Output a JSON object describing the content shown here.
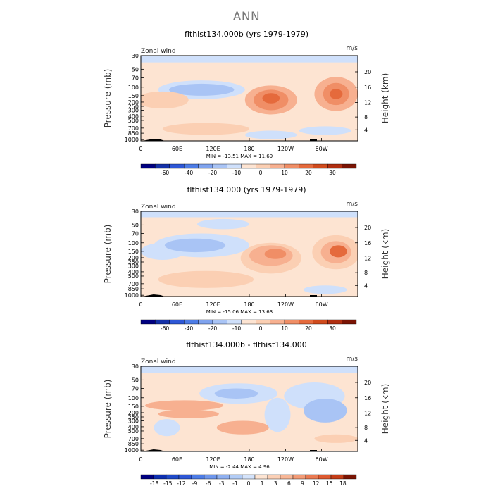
{
  "page": {
    "title": "ANN"
  },
  "colors": {
    "bg": "#fde4d2",
    "neg": [
      "#000080",
      "#0d2fb0",
      "#2e57d6",
      "#4d7ce6",
      "#7fa3ee",
      "#a9c4f5",
      "#cfe0fb"
    ],
    "pos": [
      "#fde4d2",
      "#fbcfb3",
      "#f7b090",
      "#f08e66",
      "#e56a3c",
      "#d04b1d",
      "#b02e10",
      "#7a1404"
    ]
  },
  "chart_data": [
    {
      "type": "contour",
      "title": "flthist134.000b (yrs 1979-1979)",
      "left_label": "Zonal wind",
      "right_label": "m/s",
      "ylabel": "Pressure (mb)",
      "ylabel_right": "Height (km)",
      "pressure_ticks": [
        "30",
        "50",
        "70",
        "100",
        "150",
        "200",
        "250",
        "300",
        "400",
        "500",
        "700",
        "850",
        "1000"
      ],
      "height_ticks": [
        "20",
        "16",
        "12",
        "8",
        "4"
      ],
      "x_ticks": [
        "0",
        "60E",
        "120E",
        "180",
        "120W",
        "60W"
      ],
      "stats": "MIN = -13.51   MAX =  11.69",
      "colorbar_labels": [
        "-60",
        "-40",
        "-20",
        "-10",
        "0",
        "10",
        "20",
        "30"
      ],
      "colorbar_colors": [
        "#000080",
        "#1431a8",
        "#2e57d6",
        "#4d7ce6",
        "#7fa3ee",
        "#a9c4f5",
        "#cfe0fb",
        "#fde4d2",
        "#fbcfb3",
        "#f7b090",
        "#f08e66",
        "#e56a3c",
        "#d04b1d",
        "#b02e10",
        "#7a1404"
      ]
    },
    {
      "type": "contour",
      "title": "flthist134.000 (yrs 1979-1979)",
      "left_label": "Zonal wind",
      "right_label": "m/s",
      "ylabel": "Pressure (mb)",
      "ylabel_right": "Height (km)",
      "pressure_ticks": [
        "30",
        "50",
        "70",
        "100",
        "150",
        "200",
        "250",
        "300",
        "400",
        "500",
        "700",
        "850",
        "1000"
      ],
      "height_ticks": [
        "20",
        "16",
        "12",
        "8",
        "4"
      ],
      "x_ticks": [
        "0",
        "60E",
        "120E",
        "180",
        "120W",
        "60W"
      ],
      "stats": "MIN = -15.06   MAX =  13.63",
      "colorbar_labels": [
        "-60",
        "-40",
        "-20",
        "-10",
        "0",
        "10",
        "20",
        "30"
      ],
      "colorbar_colors": [
        "#000080",
        "#1431a8",
        "#2e57d6",
        "#4d7ce6",
        "#7fa3ee",
        "#a9c4f5",
        "#cfe0fb",
        "#fde4d2",
        "#fbcfb3",
        "#f7b090",
        "#f08e66",
        "#e56a3c",
        "#d04b1d",
        "#b02e10",
        "#7a1404"
      ]
    },
    {
      "type": "contour",
      "title": "flthist134.000b - flthist134.000",
      "left_label": "Zonal wind",
      "right_label": "m/s",
      "ylabel": "Pressure (mb)",
      "ylabel_right": "Height (km)",
      "pressure_ticks": [
        "30",
        "50",
        "70",
        "100",
        "150",
        "200",
        "250",
        "300",
        "400",
        "500",
        "700",
        "850",
        "1000"
      ],
      "height_ticks": [
        "20",
        "16",
        "12",
        "8",
        "4"
      ],
      "x_ticks": [
        "0",
        "60E",
        "120E",
        "180",
        "120W",
        "60W"
      ],
      "stats": "MIN =  -2.44   MAX =   4.96",
      "colorbar_labels": [
        "-18",
        "-15",
        "-12",
        "-9",
        "-6",
        "-3",
        "-1",
        "0",
        "1",
        "3",
        "6",
        "9",
        "12",
        "15",
        "18"
      ],
      "colorbar_colors": [
        "#000080",
        "#0d2fb0",
        "#1f4ac8",
        "#2e57d6",
        "#4d7ce6",
        "#6e96ec",
        "#8fb0f0",
        "#b2ccf6",
        "#d4e3fb",
        "#fde4d2",
        "#fbd0b6",
        "#f8b797",
        "#f39b76",
        "#ea7a52",
        "#de5a30",
        "#c43d17",
        "#7a1404"
      ]
    }
  ]
}
